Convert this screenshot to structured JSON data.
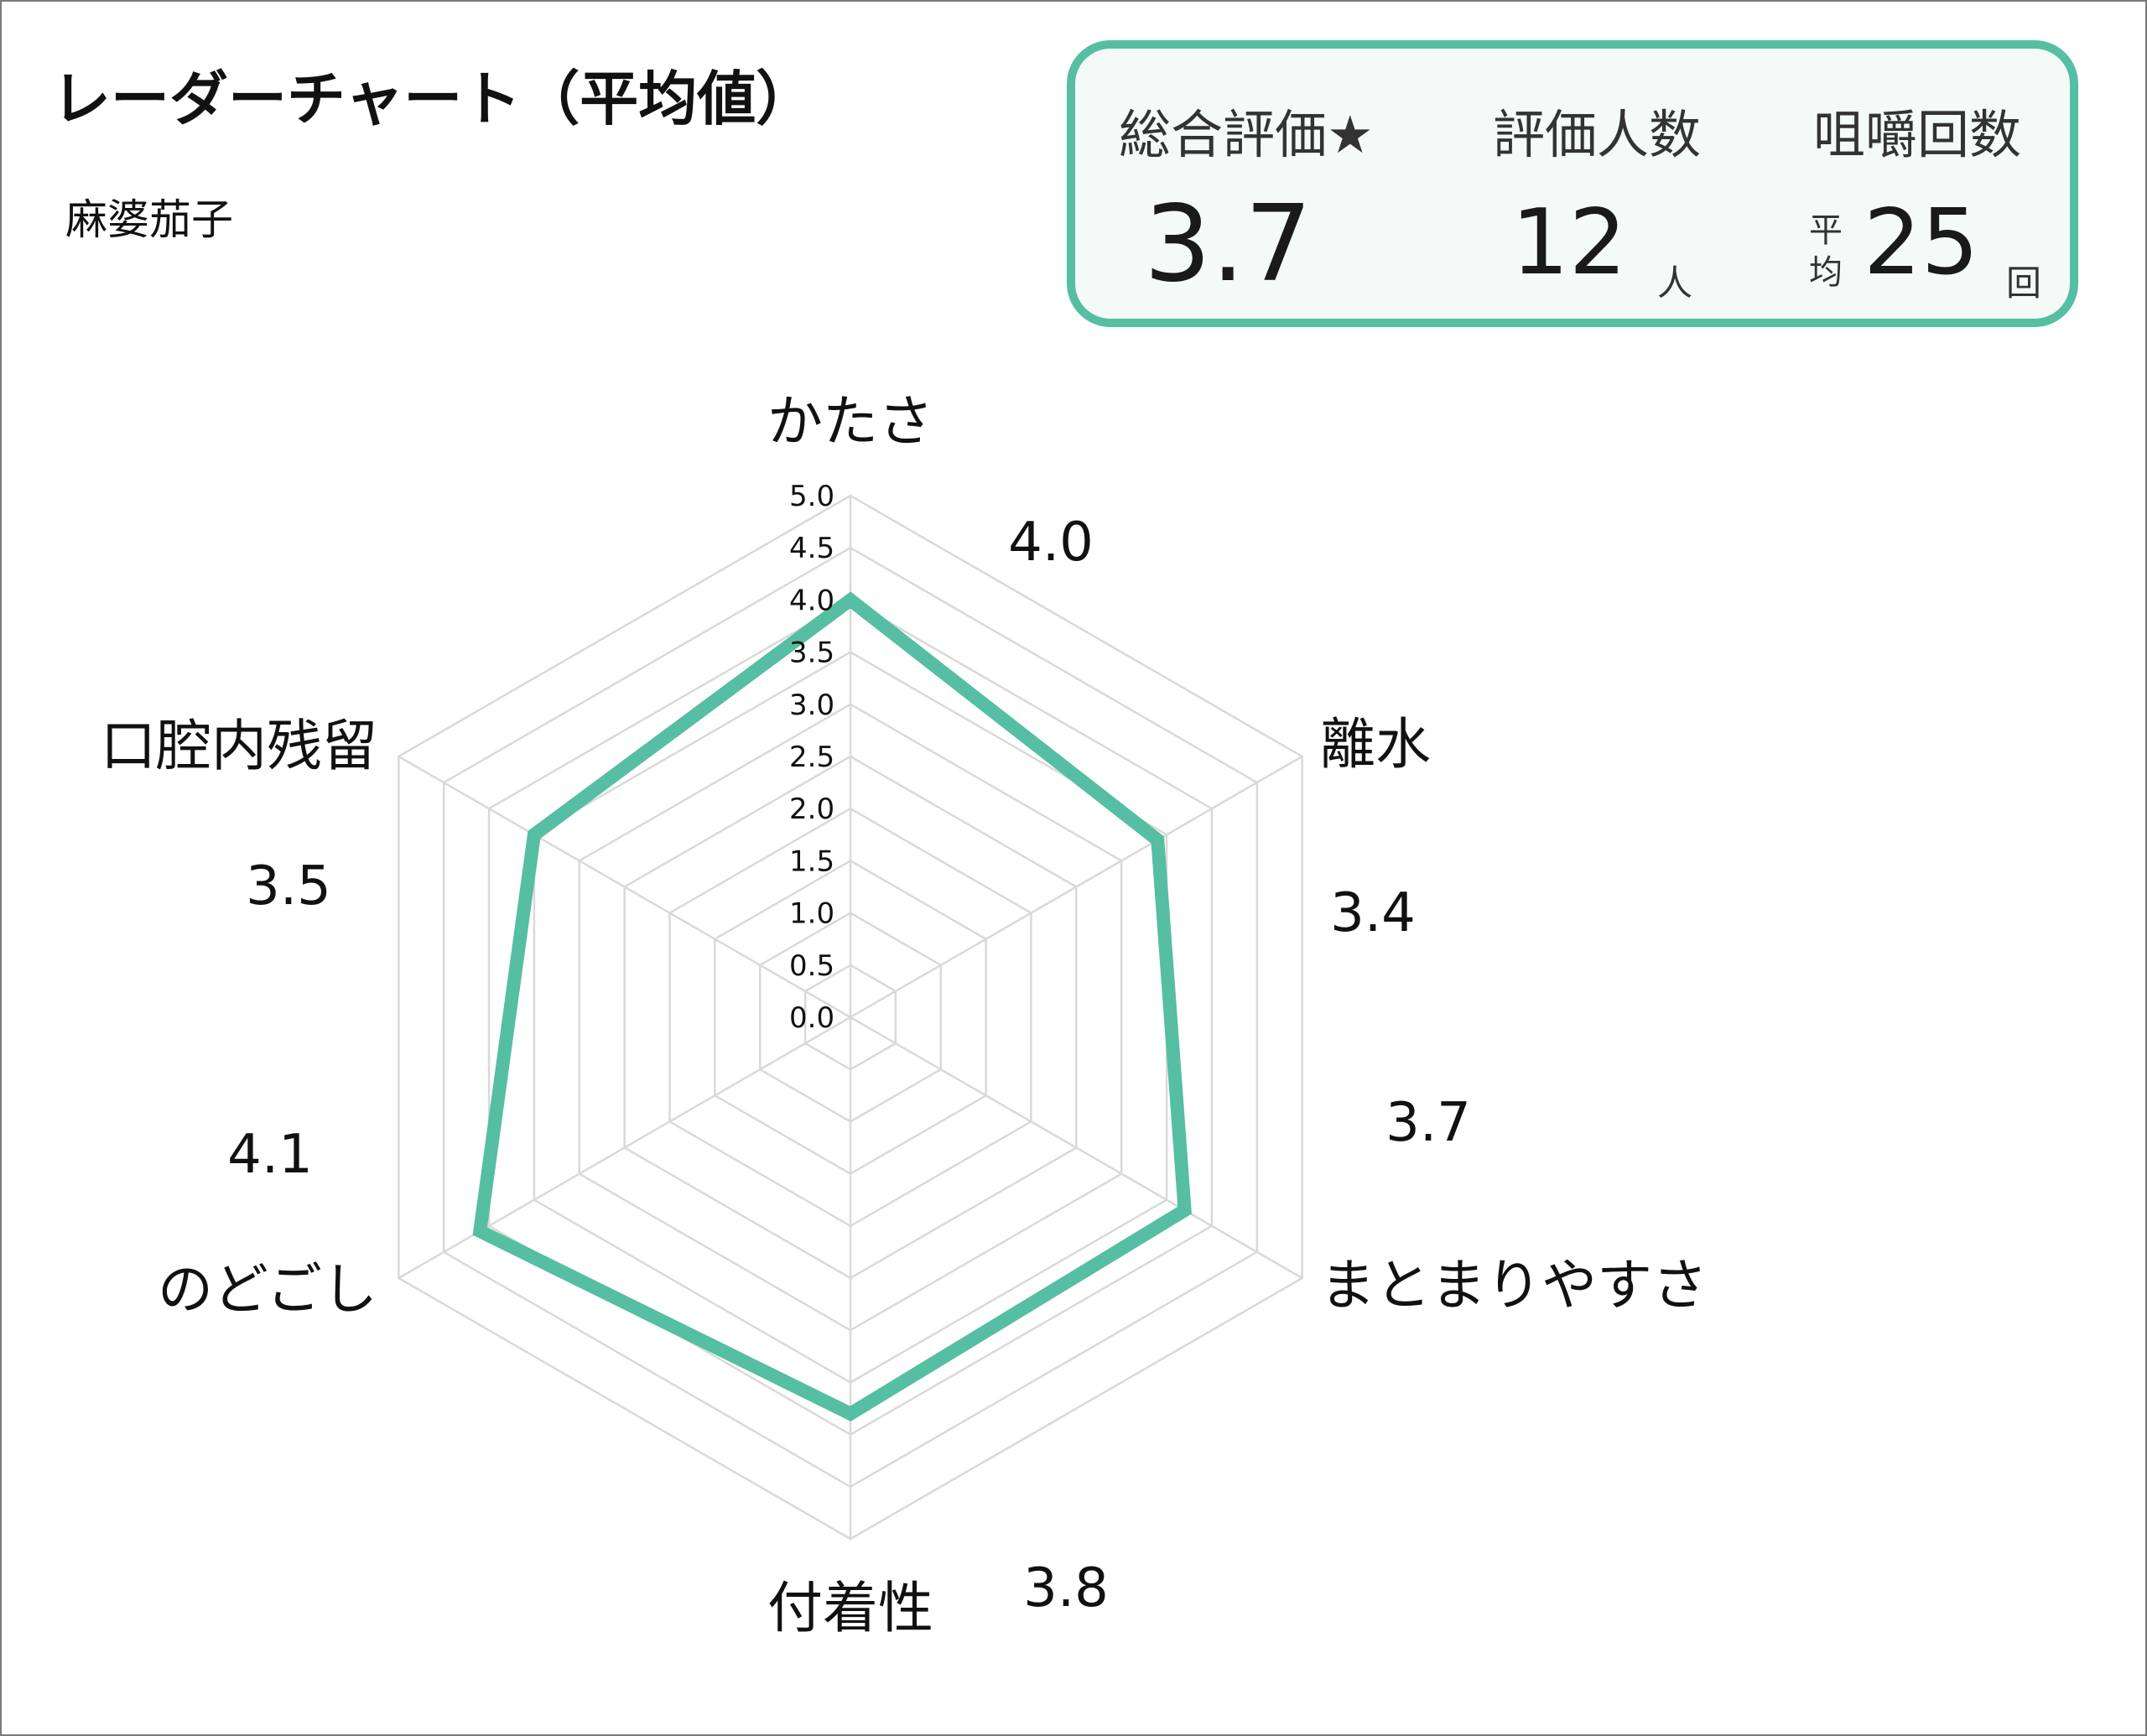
{
  "title": "レーダーチャート（平均値）",
  "subtitle": "麻婆茄子",
  "stats": {
    "overall_label": "総合評価★",
    "overall_value": "3.7",
    "people_label": "評価人数",
    "people_value": "12",
    "people_unit": "人",
    "chew_label": "咀嚼回数",
    "chew_prefix": "平均",
    "chew_value": "25",
    "chew_unit": "回"
  },
  "colors": {
    "accent": "#55bea3",
    "grid": "#d9d9d9",
    "panel_bg": "#f3faf8"
  },
  "chart_data": {
    "type": "radar",
    "axes": [
      "かたさ",
      "離水",
      "まとまりやすさ",
      "付着性",
      "のどごし",
      "口腔内残留"
    ],
    "values": [
      4.0,
      3.4,
      3.7,
      3.8,
      4.1,
      3.5
    ],
    "value_labels": [
      "4.0",
      "3.4",
      "3.7",
      "3.8",
      "4.1",
      "3.5"
    ],
    "rlim": [
      0,
      5
    ],
    "ticks": [
      "0.0",
      "0.5",
      "1.0",
      "1.5",
      "2.0",
      "2.5",
      "3.0",
      "3.5",
      "4.0",
      "4.5",
      "5.0"
    ],
    "grid": true
  }
}
